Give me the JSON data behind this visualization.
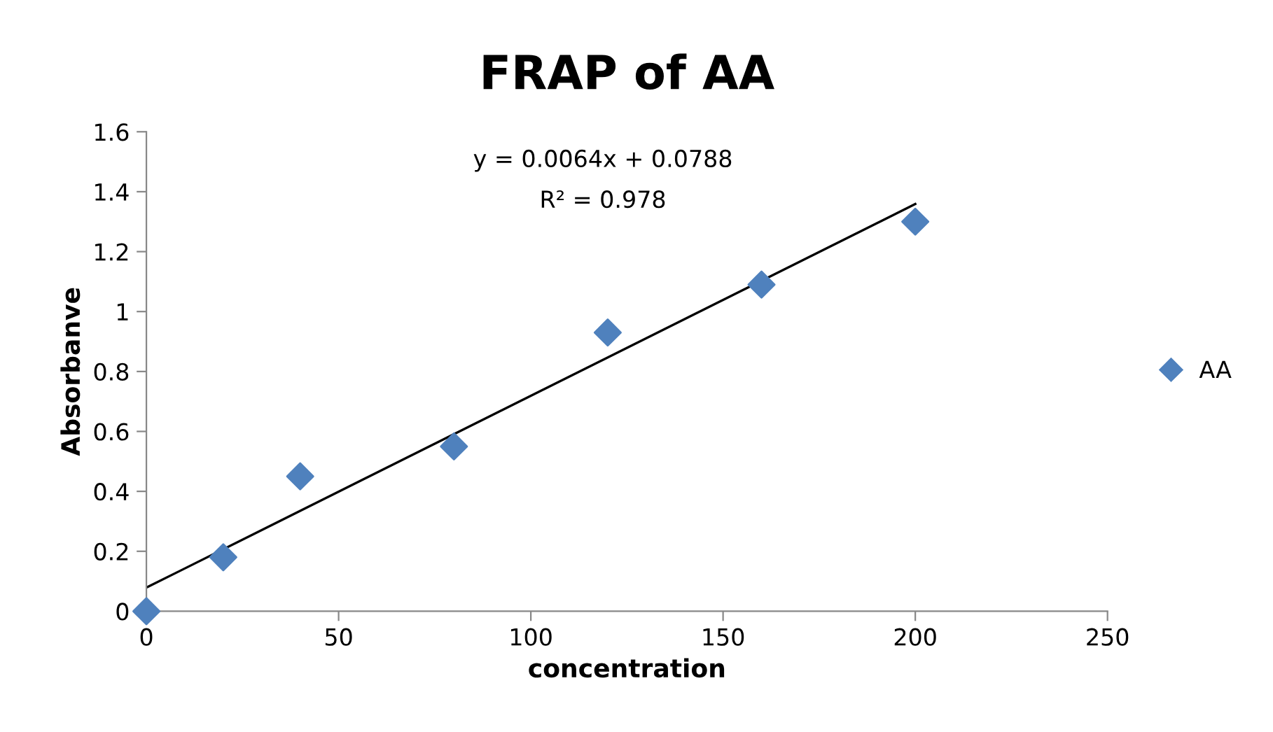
{
  "chart_data": {
    "type": "scatter",
    "title": "FRAP of AA",
    "xlabel": "concentration",
    "ylabel": "Absorbanve",
    "x": [
      0,
      20,
      40,
      80,
      120,
      160,
      200
    ],
    "series": [
      {
        "name": "AA",
        "color": "#4f81bd",
        "values": [
          0,
          0.18,
          0.45,
          0.55,
          0.93,
          1.09,
          1.3
        ],
        "marker": "diamond"
      },
      {
        "type": "line",
        "color": "#000000",
        "x": [
          0,
          200
        ],
        "values": [
          0.0788,
          1.3588
        ],
        "marker": "none"
      }
    ],
    "annotations": [
      "y = 0.0064x + 0.0788",
      "R² = 0.978"
    ],
    "xlim": [
      0,
      250
    ],
    "xticks": [
      0,
      50,
      100,
      150,
      200,
      250
    ],
    "ylim": [
      0,
      1.6
    ],
    "yticks": [
      0,
      0.2,
      0.4,
      0.6,
      0.8,
      1,
      1.2,
      1.4,
      1.6
    ],
    "grid": false,
    "legend": "right"
  }
}
